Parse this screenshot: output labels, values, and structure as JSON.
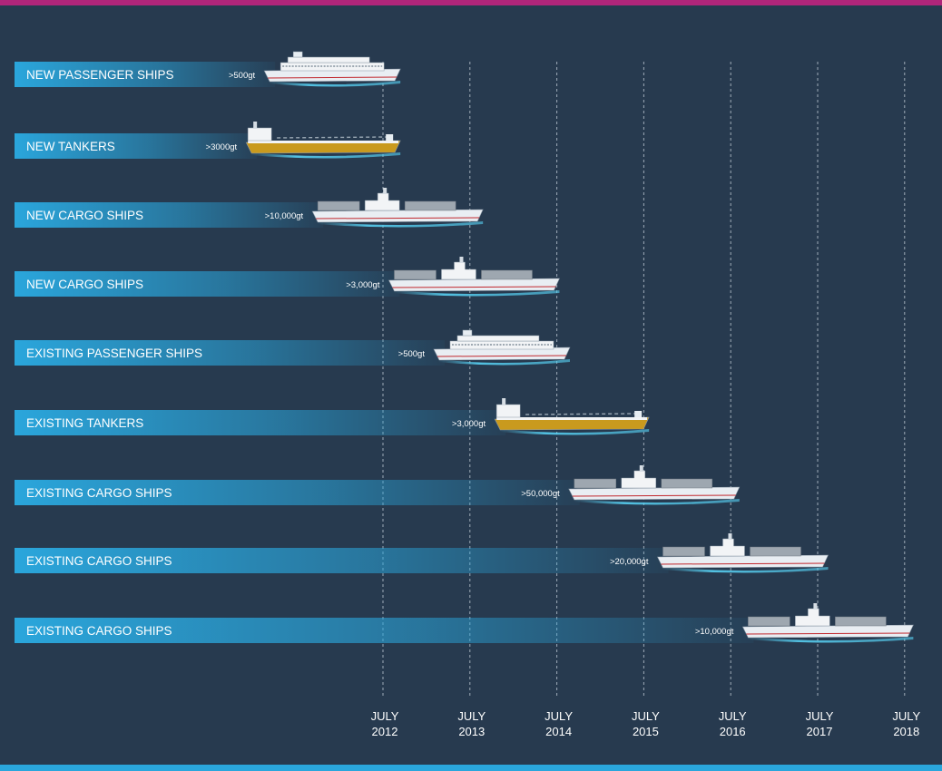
{
  "colors": {
    "background": "#273a4f",
    "top_stripe": "#b0257a",
    "bottom_stripe": "#2aa6dc",
    "bar": "#2aa6dc",
    "gridline": "#c8d2dc",
    "hull_tanker": "#c99a1e",
    "hull_other": "#e9eef3",
    "water": "#57d0f2"
  },
  "chart_data": {
    "type": "gantt",
    "x_axis": {
      "ticks": [
        {
          "line1": "JULY",
          "line2": "2012",
          "year": 2012
        },
        {
          "line1": "JULY",
          "line2": "2013",
          "year": 2013
        },
        {
          "line1": "JULY",
          "line2": "2014",
          "year": 2014
        },
        {
          "line1": "JULY",
          "line2": "2015",
          "year": 2015
        },
        {
          "line1": "JULY",
          "line2": "2016",
          "year": 2016
        },
        {
          "line1": "JULY",
          "line2": "2017",
          "year": 2017
        },
        {
          "line1": "JULY",
          "line2": "2018",
          "year": 2018
        }
      ],
      "grid": true
    },
    "rows": [
      {
        "label": "NEW PASSENGER SHIPS",
        "threshold": ">500gt",
        "ship": "passenger",
        "end": 2012.2
      },
      {
        "label": "NEW TANKERS",
        "threshold": ">3000gt",
        "ship": "tanker",
        "end": 2012.2
      },
      {
        "label": "NEW CARGO SHIPS",
        "threshold": ">10,000gt",
        "ship": "cargo",
        "end": 2013.15
      },
      {
        "label": "NEW CARGO SHIPS",
        "threshold": ">3,000gt",
        "ship": "cargo",
        "end": 2014.03
      },
      {
        "label": "EXISTING PASSENGER SHIPS",
        "threshold": ">500gt",
        "ship": "passenger",
        "end": 2014.15
      },
      {
        "label": "EXISTING TANKERS",
        "threshold": ">3,000gt",
        "ship": "tanker",
        "end": 2015.06
      },
      {
        "label": "EXISTING CARGO SHIPS",
        "threshold": ">50,000gt",
        "ship": "cargo",
        "end": 2016.1
      },
      {
        "label": "EXISTING CARGO SHIPS",
        "threshold": ">20,000gt",
        "ship": "cargo",
        "end": 2017.12
      },
      {
        "label": "EXISTING CARGO SHIPS",
        "threshold": ">10,000gt",
        "ship": "cargo",
        "end": 2018.1
      }
    ]
  }
}
